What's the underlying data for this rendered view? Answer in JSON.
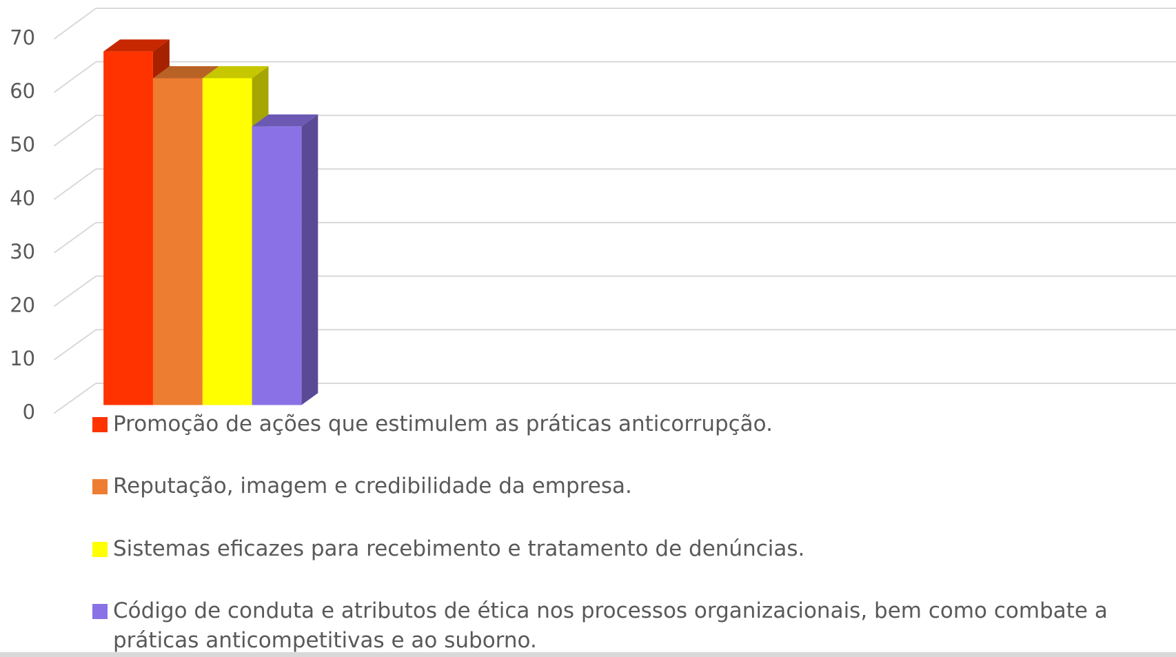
{
  "chart_data": {
    "type": "bar",
    "categories": [
      null
    ],
    "series": [
      {
        "name": "Promoção de ações que estimulem as práticas anticorrupção.",
        "color": "#ff3300",
        "values": [
          66
        ]
      },
      {
        "name": "Reputação, imagem e credibilidade da empresa.",
        "color": "#ed7d31",
        "values": [
          61
        ]
      },
      {
        "name": "Sistemas eficazes para recebimento e tratamento de denúncias.",
        "color": "#ffff00",
        "values": [
          61
        ]
      },
      {
        "name": "Código de conduta e atributos de ética nos processos organizacionais, bem como combate a práticas anticompetitivas e ao suborno.",
        "color": "#8a72e6",
        "values": [
          52
        ]
      }
    ],
    "ylim": [
      0,
      70
    ],
    "yticks": [
      0,
      10,
      20,
      30,
      40,
      50,
      60,
      70
    ],
    "grid": true,
    "legend": "bottom"
  }
}
